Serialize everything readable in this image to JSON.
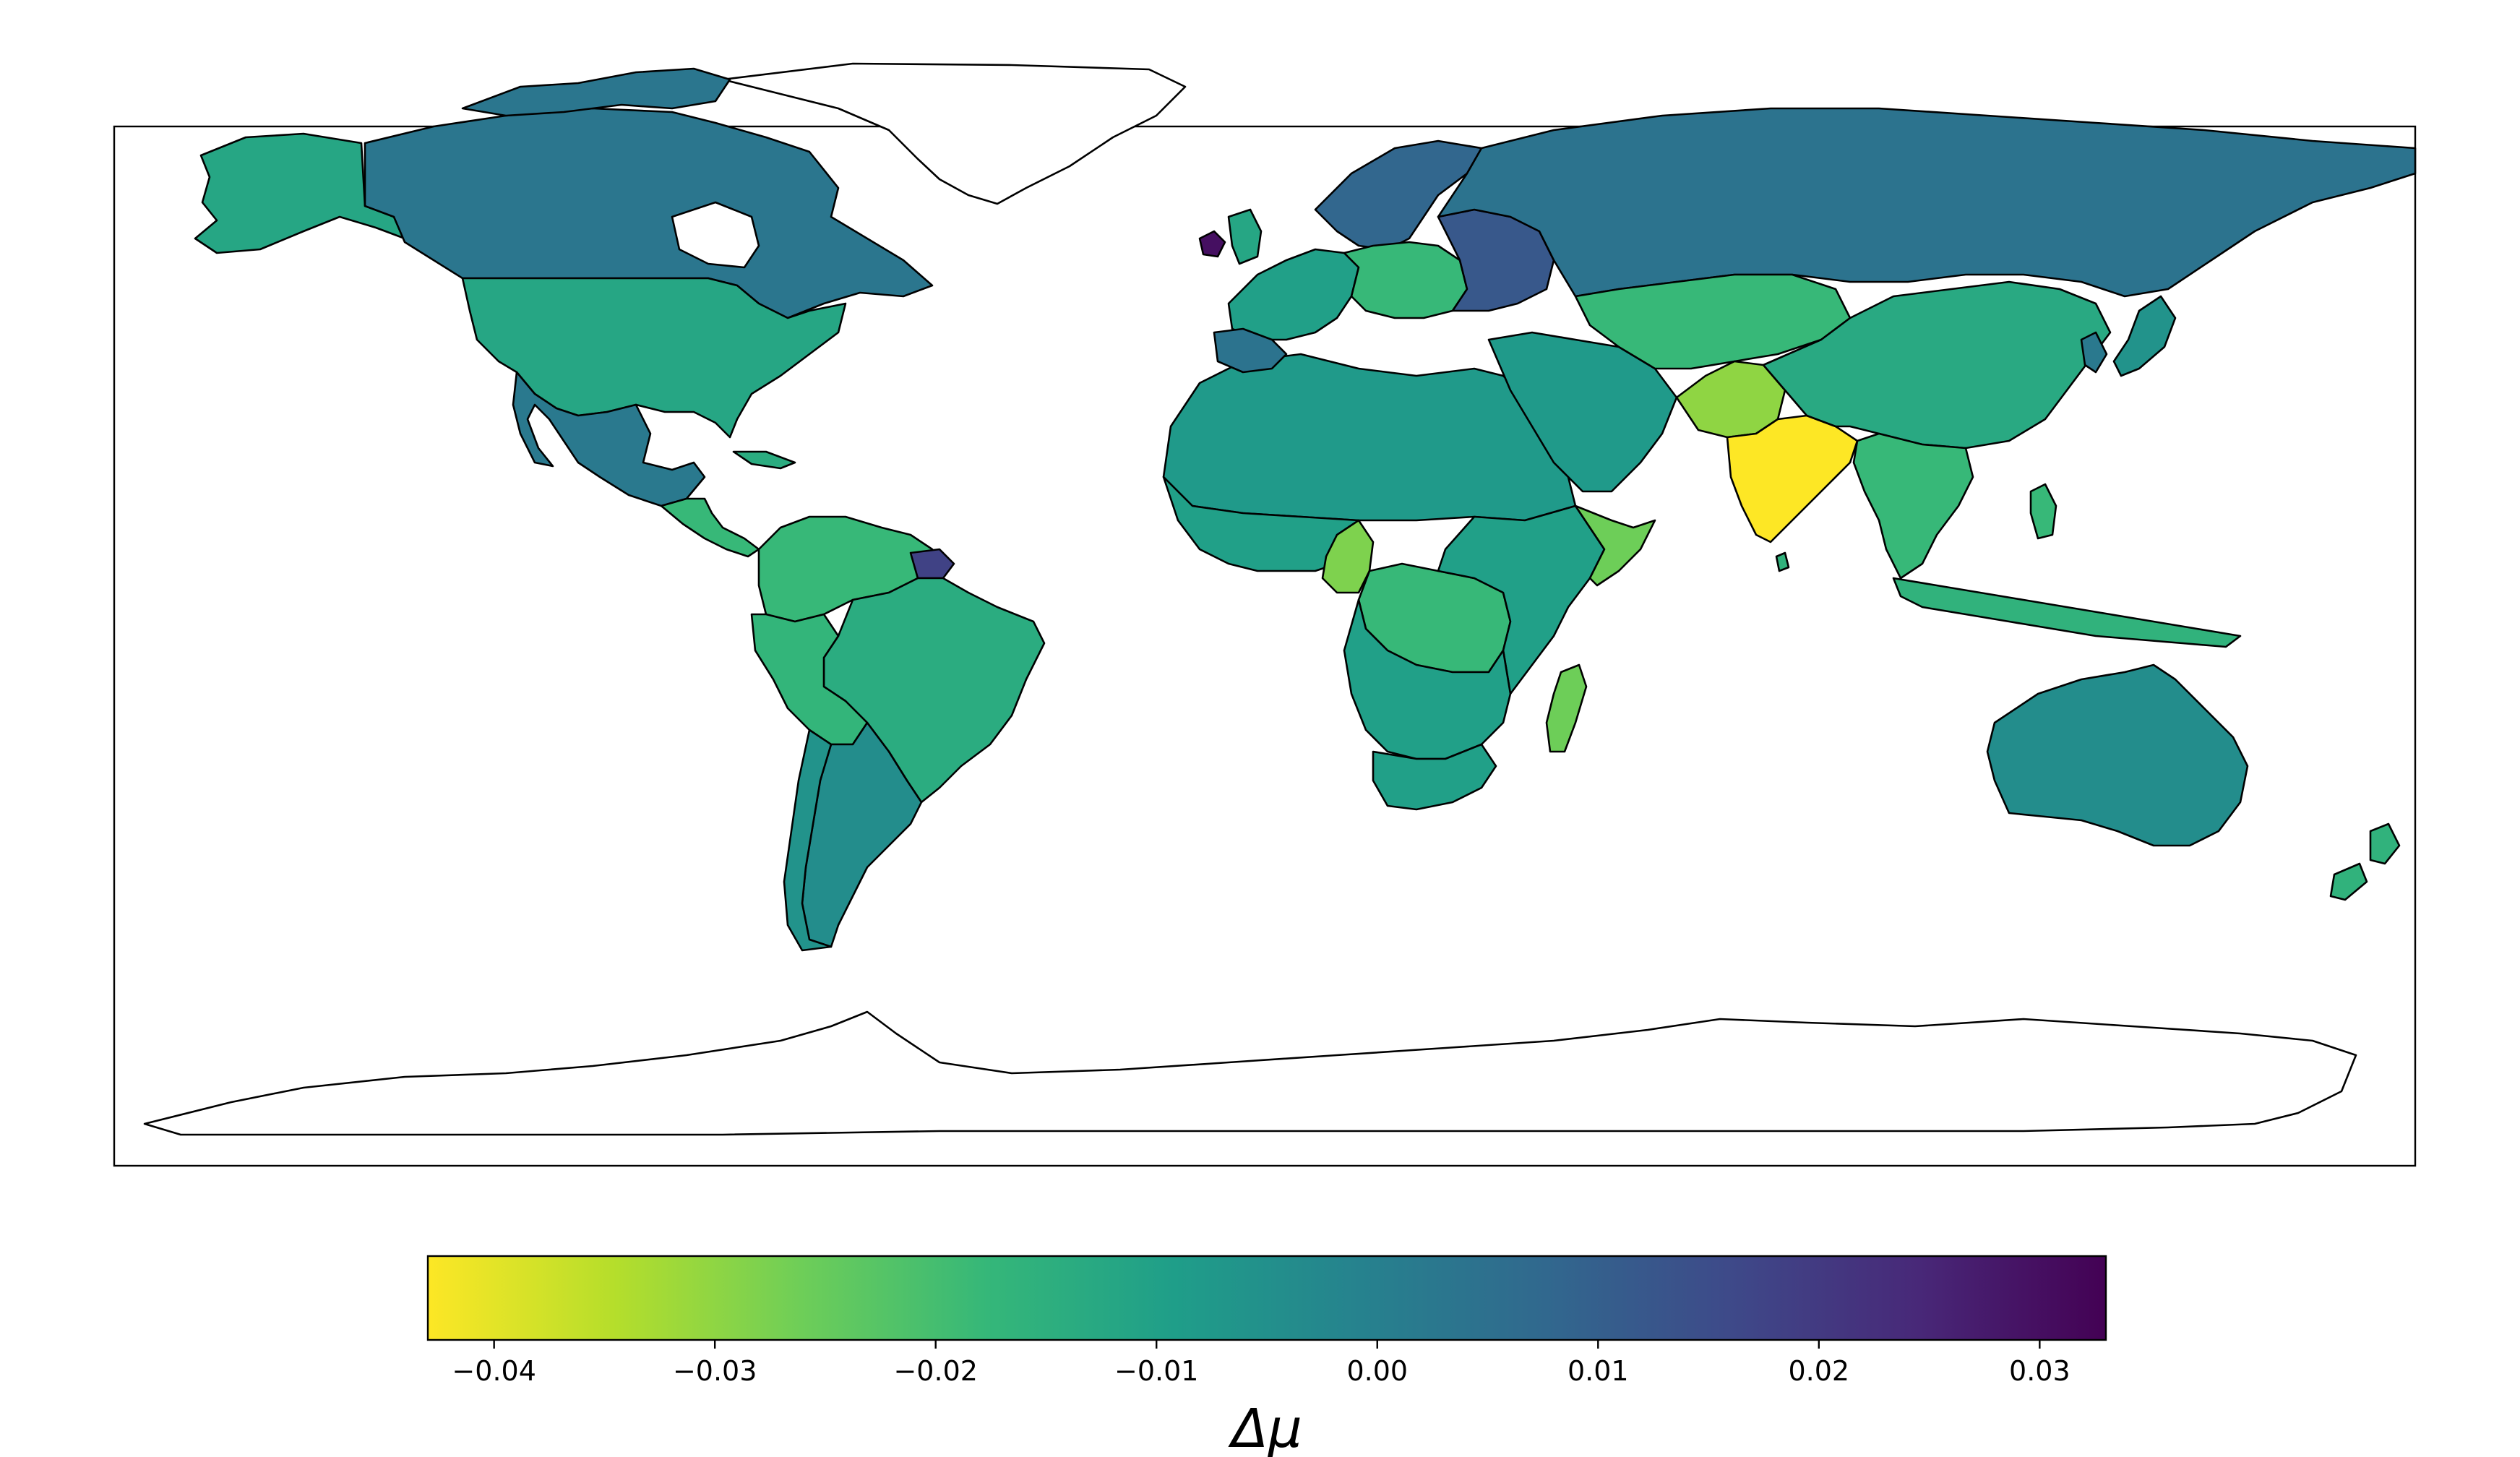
{
  "colorbar": {
    "label": "Δμ",
    "min": -0.043,
    "max": 0.033,
    "colormap": "viridis_r",
    "ticks": [
      {
        "value": -0.04,
        "label": "−0.04"
      },
      {
        "value": -0.03,
        "label": "−0.03"
      },
      {
        "value": -0.02,
        "label": "−0.02"
      },
      {
        "value": -0.01,
        "label": "−0.01"
      },
      {
        "value": 0.0,
        "label": "0.00"
      },
      {
        "value": 0.01,
        "label": "0.01"
      },
      {
        "value": 0.02,
        "label": "0.02"
      },
      {
        "value": 0.03,
        "label": "0.03"
      }
    ],
    "gradient_stops": [
      "#fde725",
      "#b5de2b",
      "#6ece58",
      "#35b779",
      "#1f9e89",
      "#26828e",
      "#31688e",
      "#3e4989",
      "#482878",
      "#440154"
    ]
  },
  "map": {
    "projection": "plate-carree",
    "regions": [
      {
        "name": "Alaska (United States)",
        "value": -0.012
      },
      {
        "name": "Canada",
        "value": 0.003
      },
      {
        "name": "Greenland",
        "value": null
      },
      {
        "name": "United States",
        "value": -0.012
      },
      {
        "name": "Mexico",
        "value": 0.002
      },
      {
        "name": "Central America",
        "value": -0.018
      },
      {
        "name": "Colombia / Venezuela",
        "value": -0.018
      },
      {
        "name": "Brazil",
        "value": -0.014
      },
      {
        "name": "Peru / Bolivia",
        "value": -0.017
      },
      {
        "name": "Argentina",
        "value": -0.004
      },
      {
        "name": "Chile",
        "value": -0.006
      },
      {
        "name": "Suriname",
        "value": 0.018
      },
      {
        "name": "Northern Africa",
        "value": -0.008
      },
      {
        "name": "Western Africa",
        "value": -0.01
      },
      {
        "name": "Cameroon",
        "value": -0.028
      },
      {
        "name": "Central Africa",
        "value": -0.02
      },
      {
        "name": "East Africa",
        "value": -0.01
      },
      {
        "name": "Southern Africa",
        "value": -0.01
      },
      {
        "name": "South Africa",
        "value": 0.002
      },
      {
        "name": "Madagascar",
        "value": -0.026
      },
      {
        "name": "Scandinavia",
        "value": 0.008
      },
      {
        "name": "Western Europe",
        "value": 0.014
      },
      {
        "name": "Central Europe",
        "value": 0.022
      },
      {
        "name": "Eastern Europe",
        "value": 0.012
      },
      {
        "name": "Ireland",
        "value": 0.03
      },
      {
        "name": "Russia",
        "value": 0.004
      },
      {
        "name": "Middle East",
        "value": -0.008
      },
      {
        "name": "Central Asia",
        "value": -0.012
      },
      {
        "name": "China",
        "value": -0.013
      },
      {
        "name": "India",
        "value": -0.043
      },
      {
        "name": "Pakistan / Nepal",
        "value": -0.03
      },
      {
        "name": "Southeast Asia",
        "value": -0.018
      },
      {
        "name": "Indonesia / Philippines",
        "value": -0.016
      },
      {
        "name": "Japan",
        "value": -0.006
      },
      {
        "name": "Australia",
        "value": -0.004
      },
      {
        "name": "New Zealand",
        "value": -0.016
      },
      {
        "name": "Antarctica",
        "value": null
      }
    ]
  }
}
